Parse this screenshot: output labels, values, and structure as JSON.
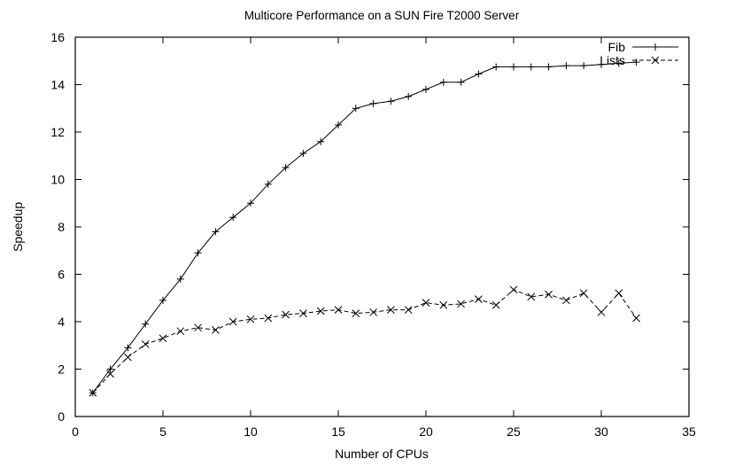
{
  "chart_data": {
    "type": "line",
    "title": "Multicore Performance on a SUN Fire T2000 Server",
    "xlabel": "Number of CPUs",
    "ylabel": "Speedup",
    "xlim": [
      0,
      35
    ],
    "ylim": [
      0,
      16
    ],
    "xticks": [
      0,
      5,
      10,
      15,
      20,
      25,
      30,
      35
    ],
    "yticks": [
      0,
      2,
      4,
      6,
      8,
      10,
      12,
      14,
      16
    ],
    "grid": false,
    "legend_position": "top-right-inside",
    "line_color": "#000000",
    "x": [
      1,
      2,
      3,
      4,
      5,
      6,
      7,
      8,
      9,
      10,
      11,
      12,
      13,
      14,
      15,
      16,
      17,
      18,
      19,
      20,
      21,
      22,
      23,
      24,
      25,
      26,
      27,
      28,
      29,
      30,
      31,
      32
    ],
    "series": [
      {
        "name": "Fib",
        "marker": "plus",
        "line": "solid",
        "values": [
          1.0,
          2.0,
          2.9,
          3.9,
          4.9,
          5.8,
          6.9,
          7.8,
          8.4,
          9.0,
          9.8,
          10.5,
          11.1,
          11.6,
          12.3,
          13.0,
          13.2,
          13.3,
          13.5,
          13.8,
          14.1,
          14.1,
          14.45,
          14.75,
          14.75,
          14.75,
          14.75,
          14.8,
          14.8,
          14.85,
          14.9,
          14.95
        ]
      },
      {
        "name": "Lists",
        "marker": "cross",
        "line": "dashed",
        "values": [
          1.0,
          1.8,
          2.5,
          3.05,
          3.3,
          3.6,
          3.75,
          3.65,
          4.0,
          4.1,
          4.15,
          4.3,
          4.35,
          4.45,
          4.5,
          4.35,
          4.4,
          4.5,
          4.5,
          4.8,
          4.7,
          4.75,
          4.95,
          4.7,
          5.35,
          5.05,
          5.15,
          4.9,
          5.2,
          4.4,
          5.2,
          4.15
        ]
      }
    ]
  }
}
